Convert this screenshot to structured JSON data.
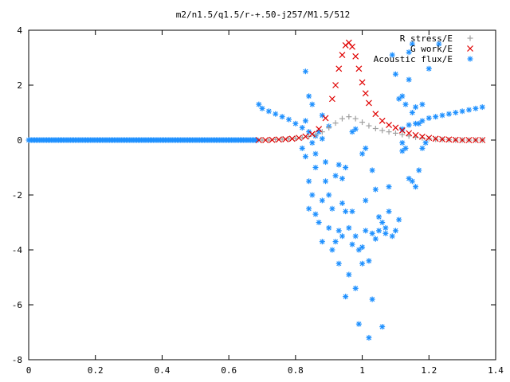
{
  "chart_data": {
    "type": "scatter",
    "title": "m2/n1.5/q1.5/r-+.50-j257/M1.5/512",
    "xlim": [
      0,
      1.4
    ],
    "ylim": [
      -8,
      4
    ],
    "x_ticks": [
      "0",
      "0.2",
      "0.4",
      "0.6",
      "0.8",
      "1",
      "1.2",
      "1.4"
    ],
    "y_ticks": [
      "4",
      "2",
      "0",
      "-2",
      "-4",
      "-6",
      "-8"
    ],
    "grid": false,
    "legend_position": "top-right",
    "series": [
      {
        "name": "R stress/E",
        "marker": "+",
        "color": "#a0a0a0",
        "points": [
          [
            0.7,
            0.0
          ],
          [
            0.72,
            0.0
          ],
          [
            0.74,
            0.02
          ],
          [
            0.76,
            0.03
          ],
          [
            0.78,
            0.04
          ],
          [
            0.8,
            0.06
          ],
          [
            0.82,
            0.09
          ],
          [
            0.84,
            0.13
          ],
          [
            0.86,
            0.2
          ],
          [
            0.88,
            0.3
          ],
          [
            0.9,
            0.45
          ],
          [
            0.92,
            0.62
          ],
          [
            0.94,
            0.78
          ],
          [
            0.96,
            0.85
          ],
          [
            0.98,
            0.78
          ],
          [
            1.0,
            0.65
          ],
          [
            1.02,
            0.52
          ],
          [
            1.04,
            0.42
          ],
          [
            1.06,
            0.35
          ],
          [
            1.08,
            0.3
          ],
          [
            1.1,
            0.25
          ],
          [
            1.12,
            0.2
          ],
          [
            1.14,
            0.15
          ],
          [
            1.16,
            0.1
          ],
          [
            1.18,
            0.08
          ],
          [
            1.2,
            0.05
          ],
          [
            1.22,
            0.03
          ],
          [
            1.24,
            0.02
          ],
          [
            1.26,
            0.01
          ],
          [
            1.28,
            0.0
          ],
          [
            1.3,
            0.0
          ],
          [
            1.32,
            0.0
          ],
          [
            1.34,
            0.0
          ],
          [
            1.36,
            0.0
          ]
        ]
      },
      {
        "name": "G work/E",
        "marker": "x",
        "color": "#e00000",
        "points": [
          [
            0.69,
            0.0
          ],
          [
            0.71,
            0.0
          ],
          [
            0.73,
            0.01
          ],
          [
            0.75,
            0.02
          ],
          [
            0.77,
            0.03
          ],
          [
            0.79,
            0.05
          ],
          [
            0.81,
            0.08
          ],
          [
            0.83,
            0.13
          ],
          [
            0.85,
            0.22
          ],
          [
            0.87,
            0.4
          ],
          [
            0.89,
            0.8
          ],
          [
            0.91,
            1.5
          ],
          [
            0.92,
            2.0
          ],
          [
            0.93,
            2.6
          ],
          [
            0.94,
            3.1
          ],
          [
            0.95,
            3.45
          ],
          [
            0.96,
            3.55
          ],
          [
            0.97,
            3.4
          ],
          [
            0.98,
            3.05
          ],
          [
            0.99,
            2.6
          ],
          [
            1.0,
            2.1
          ],
          [
            1.01,
            1.7
          ],
          [
            1.02,
            1.35
          ],
          [
            1.04,
            0.95
          ],
          [
            1.06,
            0.7
          ],
          [
            1.08,
            0.55
          ],
          [
            1.1,
            0.45
          ],
          [
            1.12,
            0.35
          ],
          [
            1.14,
            0.25
          ],
          [
            1.16,
            0.18
          ],
          [
            1.18,
            0.12
          ],
          [
            1.2,
            0.08
          ],
          [
            1.22,
            0.05
          ],
          [
            1.24,
            0.03
          ],
          [
            1.26,
            0.02
          ],
          [
            1.28,
            0.01
          ],
          [
            1.3,
            0.0
          ],
          [
            1.32,
            0.0
          ],
          [
            1.34,
            0.0
          ],
          [
            1.36,
            0.0
          ]
        ]
      },
      {
        "name": "Acoustic flux/E",
        "marker": "*",
        "color": "#1e90ff",
        "points": [
          [
            0.69,
            1.3
          ],
          [
            0.7,
            1.15
          ],
          [
            0.72,
            1.05
          ],
          [
            0.74,
            0.95
          ],
          [
            0.76,
            0.85
          ],
          [
            0.78,
            0.75
          ],
          [
            0.8,
            0.6
          ],
          [
            0.82,
            0.45
          ],
          [
            0.84,
            0.3
          ],
          [
            0.86,
            0.15
          ],
          [
            0.88,
            0.05
          ],
          [
            1.12,
            0.4
          ],
          [
            1.14,
            0.55
          ],
          [
            1.16,
            0.6
          ],
          [
            1.18,
            0.7
          ],
          [
            1.2,
            0.8
          ],
          [
            1.22,
            0.85
          ],
          [
            1.24,
            0.9
          ],
          [
            1.26,
            0.95
          ],
          [
            1.28,
            1.0
          ],
          [
            1.3,
            1.05
          ],
          [
            1.32,
            1.1
          ],
          [
            1.34,
            1.15
          ],
          [
            1.36,
            1.2
          ],
          [
            0.83,
            2.5
          ],
          [
            0.84,
            1.6
          ],
          [
            0.85,
            1.3
          ],
          [
            0.83,
            0.7
          ],
          [
            0.82,
            -0.3
          ],
          [
            0.83,
            -0.6
          ],
          [
            0.84,
            -1.5
          ],
          [
            0.84,
            -2.5
          ],
          [
            0.85,
            -2.0
          ],
          [
            0.86,
            -1.0
          ],
          [
            0.86,
            -2.7
          ],
          [
            0.87,
            -3.0
          ],
          [
            0.88,
            -3.7
          ],
          [
            0.88,
            -2.2
          ],
          [
            0.89,
            -1.5
          ],
          [
            0.89,
            -0.8
          ],
          [
            0.9,
            -3.2
          ],
          [
            0.9,
            -2.0
          ],
          [
            0.91,
            -4.0
          ],
          [
            0.91,
            -2.5
          ],
          [
            0.92,
            -3.7
          ],
          [
            0.92,
            -1.3
          ],
          [
            0.93,
            -3.3
          ],
          [
            0.93,
            -4.5
          ],
          [
            0.94,
            -2.3
          ],
          [
            0.94,
            -3.5
          ],
          [
            0.95,
            -2.6
          ],
          [
            0.95,
            -5.7
          ],
          [
            0.96,
            -4.9
          ],
          [
            0.96,
            -3.2
          ],
          [
            0.97,
            -3.8
          ],
          [
            0.97,
            -2.6
          ],
          [
            0.98,
            -5.4
          ],
          [
            0.98,
            -3.5
          ],
          [
            0.99,
            -6.7
          ],
          [
            0.99,
            -4.0
          ],
          [
            1.0,
            -4.5
          ],
          [
            1.0,
            -3.9
          ],
          [
            1.01,
            -2.2
          ],
          [
            1.01,
            -3.3
          ],
          [
            1.02,
            -7.2
          ],
          [
            1.02,
            -4.4
          ],
          [
            1.03,
            -5.8
          ],
          [
            1.03,
            -3.4
          ],
          [
            1.04,
            -1.8
          ],
          [
            1.04,
            -3.6
          ],
          [
            1.05,
            -3.3
          ],
          [
            1.05,
            -2.8
          ],
          [
            1.06,
            -6.8
          ],
          [
            1.06,
            -3.0
          ],
          [
            1.07,
            -3.2
          ],
          [
            1.07,
            -3.4
          ],
          [
            1.08,
            -1.7
          ],
          [
            1.08,
            -2.6
          ],
          [
            1.09,
            -3.5
          ],
          [
            1.1,
            -3.3
          ],
          [
            1.11,
            -2.9
          ],
          [
            1.12,
            -0.1
          ],
          [
            1.12,
            -0.4
          ],
          [
            1.13,
            -0.3
          ],
          [
            1.14,
            -1.4
          ],
          [
            1.15,
            -1.5
          ],
          [
            1.16,
            -1.7
          ],
          [
            1.17,
            -1.1
          ],
          [
            1.18,
            -0.3
          ],
          [
            1.19,
            -0.1
          ],
          [
            1.1,
            2.4
          ],
          [
            1.11,
            1.5
          ],
          [
            1.12,
            1.6
          ],
          [
            1.13,
            1.3
          ],
          [
            1.14,
            2.2
          ],
          [
            1.15,
            1.0
          ],
          [
            1.16,
            1.2
          ],
          [
            1.17,
            0.6
          ],
          [
            1.18,
            1.3
          ],
          [
            1.2,
            2.6
          ],
          [
            1.09,
            3.1
          ],
          [
            1.14,
            3.2
          ],
          [
            1.15,
            3.5
          ],
          [
            1.23,
            3.5
          ],
          [
            0.97,
            0.3
          ],
          [
            0.98,
            0.4
          ],
          [
            0.93,
            -0.9
          ],
          [
            0.94,
            -1.4
          ],
          [
            0.95,
            -1.0
          ],
          [
            1.0,
            -0.5
          ],
          [
            1.01,
            -0.3
          ],
          [
            1.03,
            -1.1
          ],
          [
            0.9,
            0.5
          ],
          [
            0.86,
            -0.5
          ],
          [
            0.88,
            0.9
          ],
          [
            0.87,
            0.3
          ],
          [
            0.85,
            -0.1
          ]
        ]
      }
    ]
  }
}
